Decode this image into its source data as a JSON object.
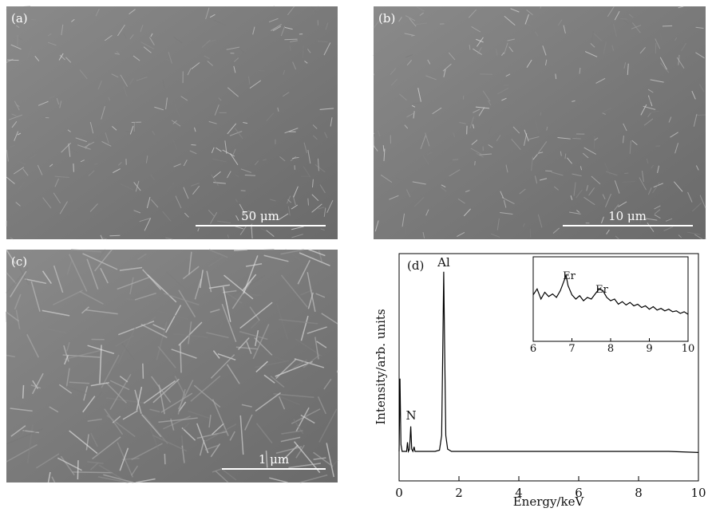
{
  "panels": [
    {
      "label": "(a)",
      "scale_bar": "50 μm"
    },
    {
      "label": "(b)",
      "scale_bar": "10 μm"
    },
    {
      "label": "(c)",
      "scale_bar": "1 μm"
    }
  ],
  "chart_data": [
    {
      "type": "line",
      "panel_label": "(d)",
      "x_label": "Energy/keV",
      "y_label": "Intensity/arb. units",
      "annotations": [
        "N",
        "Al"
      ],
      "xlim": [
        0,
        10
      ],
      "xticks": [
        0,
        2,
        4,
        6,
        8,
        10
      ],
      "ylim": [
        0,
        100
      ],
      "color": "#000000",
      "x": [
        0,
        0.03,
        0.06,
        0.1,
        0.15,
        0.2,
        0.25,
        0.28,
        0.31,
        0.35,
        0.39,
        0.42,
        0.46,
        0.5,
        0.53,
        0.57,
        0.65,
        0.8,
        1.0,
        1.2,
        1.35,
        1.42,
        1.46,
        1.49,
        1.52,
        1.56,
        1.62,
        1.75,
        2.0,
        3,
        4,
        5,
        6,
        7,
        8,
        9,
        10
      ],
      "values": [
        13,
        45,
        16,
        13,
        13,
        13,
        13,
        17,
        13,
        14,
        24,
        14,
        13,
        15,
        13,
        13,
        13,
        13,
        13,
        13,
        13.5,
        20,
        60,
        92,
        60,
        20,
        14,
        13,
        13,
        13,
        13,
        13,
        13,
        13,
        13,
        13,
        12.5
      ]
    },
    {
      "type": "line",
      "annotations": [
        "Er",
        "Er"
      ],
      "xlim": [
        6,
        10
      ],
      "xticks": [
        6,
        7,
        8,
        9,
        10
      ],
      "ylim": [
        0,
        100
      ],
      "color": "#000000",
      "x": [
        6.0,
        6.1,
        6.2,
        6.3,
        6.4,
        6.5,
        6.6,
        6.7,
        6.8,
        6.85,
        6.9,
        7.0,
        7.1,
        7.2,
        7.3,
        7.4,
        7.5,
        7.6,
        7.7,
        7.8,
        7.9,
        8.0,
        8.1,
        8.2,
        8.3,
        8.4,
        8.5,
        8.6,
        8.7,
        8.8,
        8.9,
        9.0,
        9.1,
        9.2,
        9.3,
        9.4,
        9.5,
        9.6,
        9.7,
        9.8,
        9.9,
        10.0
      ],
      "values": [
        55,
        62,
        50,
        58,
        53,
        56,
        52,
        60,
        72,
        78,
        66,
        55,
        50,
        54,
        48,
        52,
        50,
        56,
        62,
        60,
        52,
        48,
        50,
        44,
        47,
        43,
        46,
        42,
        44,
        40,
        42,
        38,
        41,
        37,
        39,
        36,
        38,
        35,
        36,
        33,
        35,
        32
      ]
    }
  ]
}
